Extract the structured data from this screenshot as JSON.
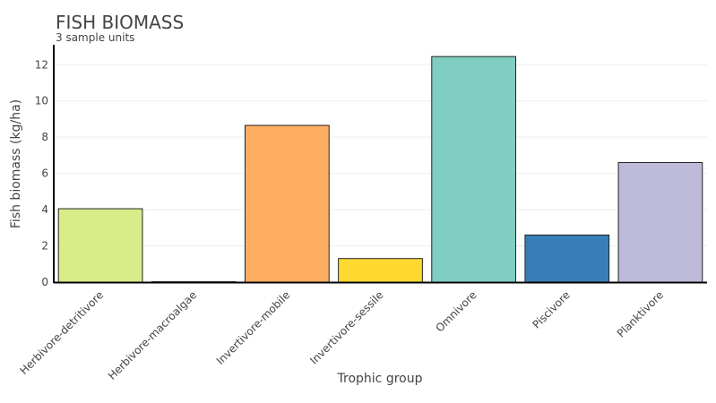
{
  "chart_data": {
    "type": "bar",
    "title": "FISH BIOMASS",
    "subtitle": "3 sample units",
    "xlabel": "Trophic group",
    "ylabel": "Fish biomass (kg/ha)",
    "categories": [
      "Herbivore-detritivore",
      "Herbivore-macroalgae",
      "Invertivore-mobile",
      "Invertivore-sessile",
      "Omnivore",
      "Piscivore",
      "Planktivore"
    ],
    "values": [
      4.05,
      0.02,
      8.65,
      1.3,
      12.45,
      2.6,
      6.6
    ],
    "colors": [
      "#d9ec8a",
      "#1f1f1f",
      "#fdae61",
      "#ffd92f",
      "#80cdc1",
      "#377eb8",
      "#bebada"
    ],
    "yticks": [
      0,
      2,
      4,
      6,
      8,
      10,
      12
    ],
    "ylim": [
      0,
      13.1
    ],
    "grid": true,
    "legend": "none"
  }
}
